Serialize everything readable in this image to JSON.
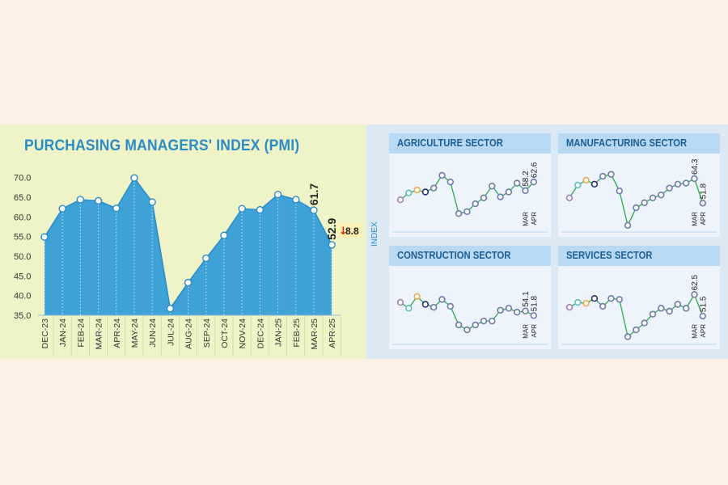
{
  "title": "PURCHASING MANAGERS' INDEX (PMI)",
  "chart_data": [
    {
      "type": "area",
      "title": "PURCHASING MANAGERS' INDEX (PMI)",
      "categories": [
        "DEC-23",
        "JAN-24",
        "FEB-24",
        "MAR-24",
        "APR-24",
        "MAY-24",
        "JUN-24",
        "JUL-24",
        "AUG-24",
        "SEP-24",
        "OCT-24",
        "NOV-24",
        "DEC-24",
        "JAN-25",
        "FEB-25",
        "MAR-25",
        "APR-25"
      ],
      "values": [
        54.9,
        62.1,
        64.4,
        64.1,
        62.2,
        69.9,
        63.8,
        36.7,
        43.3,
        49.5,
        55.3,
        62.1,
        61.8,
        65.7,
        64.4,
        61.7,
        52.9
      ],
      "yticks": [
        "70.0",
        "65.0",
        "60.0",
        "55.0",
        "50.0",
        "45.0",
        "40.0",
        "35.0"
      ],
      "ylim": [
        35,
        72
      ],
      "annotations": {
        "mar": "61.7",
        "apr": "52.9",
        "change": "8.8",
        "change_arrow": "↓"
      },
      "grid": "vertical dotted"
    },
    {
      "type": "line",
      "title": "AGRICULTURE SECTOR",
      "values": [
        53.5,
        57.0,
        58.5,
        57.5,
        59.5,
        66.0,
        62.6,
        46.5,
        47.5,
        51.5,
        54.5,
        60.5,
        55.0,
        57.5,
        62.0,
        58.2,
        62.6
      ],
      "labels": {
        "mar_value": "58.2",
        "apr_value": "62.6",
        "mar": "MAR",
        "apr": "APR"
      }
    },
    {
      "type": "line",
      "title": "MANUFACTURING SECTOR",
      "values": [
        54.5,
        61.0,
        63.5,
        61.5,
        65.5,
        66.5,
        58.0,
        40.5,
        49.5,
        52.0,
        54.5,
        56.0,
        59.5,
        61.5,
        62.0,
        64.3,
        51.8
      ],
      "labels": {
        "mar_value": "64.3",
        "apr_value": "51.8",
        "mar": "MAR",
        "apr": "APR"
      }
    },
    {
      "type": "line",
      "title": "CONSTRUCTION SECTOR",
      "values": [
        58.5,
        55.5,
        61.5,
        57.5,
        56.0,
        60.0,
        56.5,
        47.0,
        44.5,
        47.0,
        49.0,
        49.0,
        54.5,
        55.5,
        53.5,
        54.1,
        51.8
      ],
      "labels": {
        "mar_value": "54.1",
        "apr_value": "51.8",
        "mar": "MAR",
        "apr": "APR"
      }
    },
    {
      "type": "line",
      "title": "SERVICES SECTOR",
      "values": [
        56.0,
        58.5,
        58.0,
        60.5,
        56.5,
        60.5,
        60.0,
        41.0,
        44.5,
        48.0,
        52.5,
        55.5,
        54.0,
        57.5,
        55.5,
        62.5,
        51.5
      ],
      "labels": {
        "mar_value": "62.5",
        "apr_value": "51.5",
        "mar": "MAR",
        "apr": "APR"
      }
    }
  ],
  "index_label": "INDEX",
  "colors": {
    "area_fill": "#3fa2d6",
    "area_line": "#2a8bc7",
    "title": "#2a8bc7",
    "left_bg": "#eef4c8",
    "right_bg": "#dbe9f4",
    "sector_head": "#b8d9f1",
    "sector_body": "#eef4fb",
    "sector_line": "#2fa84f",
    "sector_marker": "#6a7ba8",
    "sector_first_markers": [
      "#a17fb8",
      "#5dbfc0",
      "#f0a94a",
      "#2a2f6d"
    ],
    "drop_arrow": "#e2231a",
    "badge_bg": "#fdf0b0"
  }
}
